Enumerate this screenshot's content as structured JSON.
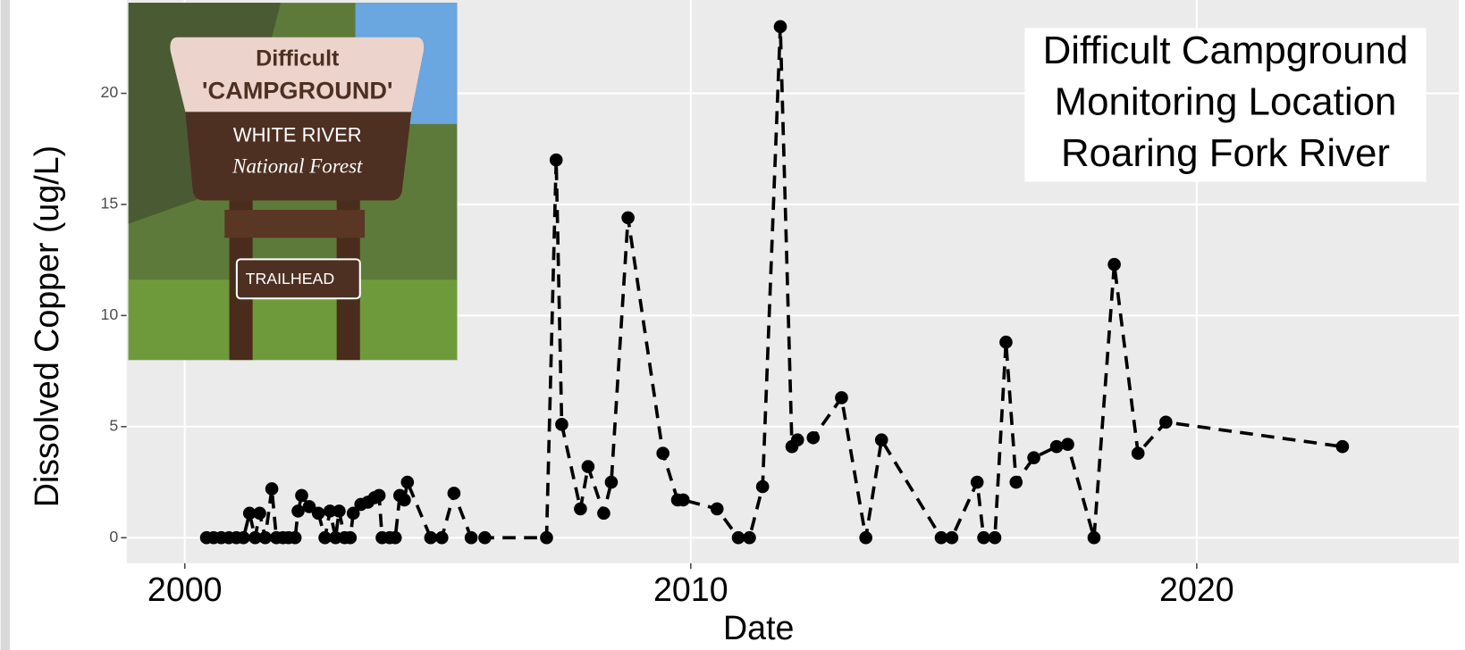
{
  "chart_data": {
    "type": "line",
    "title": [
      "Difficult Campground",
      "Monitoring Location",
      "Roaring Fork River"
    ],
    "x_label": "Date",
    "y_label": "Dissolved Copper (ug/L)",
    "photo_text": [
      "Difficult",
      "'CAMPGROUND'",
      "WHITE RIVER",
      "National Forest",
      "TRAILHEAD"
    ],
    "xlim": [
      1998.85,
      2025.18
    ],
    "xticks": [
      2000,
      2010,
      2020
    ],
    "ylim": [
      -1.15,
      24.2
    ],
    "yticks": [
      0,
      5,
      10,
      15,
      20
    ],
    "grid": true,
    "series": [
      {
        "color": "#000000",
        "x": [
          2000.43,
          2000.57,
          2000.72,
          2000.87,
          2001.02,
          2001.16,
          2001.28,
          2001.39,
          2001.48,
          2001.59,
          2001.72,
          2001.81,
          2001.94,
          2002.05,
          2002.18,
          2002.24,
          2002.31,
          2002.46,
          2002.64,
          2002.77,
          2002.87,
          2002.98,
          2003.05,
          2003.16,
          2003.27,
          2003.33,
          2003.48,
          2003.62,
          2003.75,
          2003.84,
          2003.9,
          2004.05,
          2004.16,
          2004.25,
          2004.34,
          2004.4,
          2004.86,
          2005.08,
          2005.32,
          2005.66,
          2005.93,
          2007.15,
          2007.34,
          2007.45,
          2007.82,
          2007.97,
          2008.28,
          2008.43,
          2008.76,
          2009.45,
          2009.74,
          2009.85,
          2010.52,
          2010.94,
          2011.16,
          2011.42,
          2011.77,
          2012.0,
          2012.11,
          2012.42,
          2012.98,
          2013.46,
          2013.77,
          2014.95,
          2015.16,
          2015.66,
          2015.79,
          2016.01,
          2016.23,
          2016.43,
          2016.78,
          2017.23,
          2017.45,
          2017.97,
          2018.37,
          2018.84,
          2019.39,
          2022.88
        ],
        "values": [
          0,
          0,
          0,
          0,
          0,
          0,
          1.1,
          0,
          1.1,
          0,
          2.2,
          0,
          0,
          0,
          0,
          1.2,
          1.9,
          1.4,
          1.1,
          0,
          1.2,
          0,
          1.2,
          0,
          0,
          1.1,
          1.5,
          1.6,
          1.8,
          1.9,
          0,
          0,
          0,
          1.9,
          1.7,
          2.5,
          0,
          0,
          2.0,
          0,
          0,
          0,
          17,
          5.1,
          1.3,
          3.2,
          1.1,
          2.5,
          14.4,
          3.8,
          1.7,
          1.7,
          1.3,
          0,
          0,
          2.3,
          23,
          4.1,
          4.4,
          4.5,
          6.3,
          0,
          4.4,
          0,
          0,
          2.5,
          0,
          0,
          8.8,
          2.5,
          3.6,
          4.1,
          4.2,
          0,
          12.3,
          3.8,
          5.2,
          4.1
        ]
      }
    ]
  }
}
